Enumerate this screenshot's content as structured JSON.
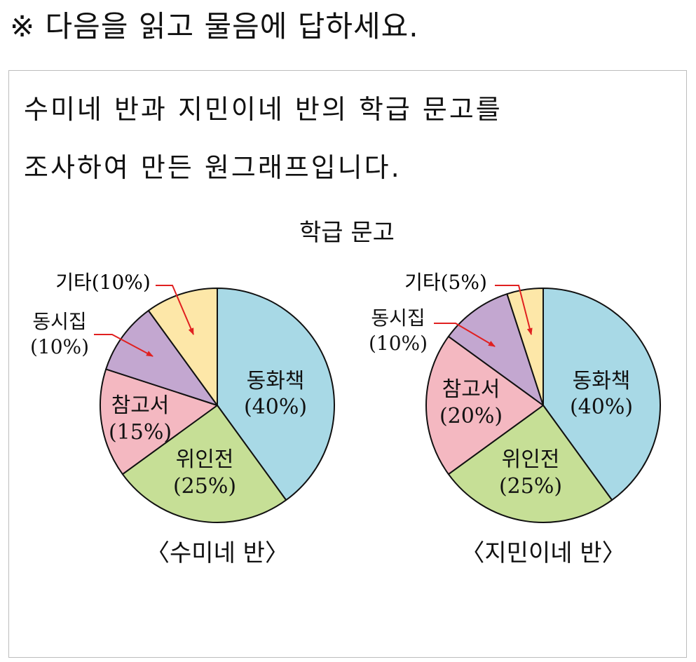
{
  "instruction": "※ 다음을 읽고 물음에 답하세요.",
  "passage": {
    "line1": "수미네 반과 지민이네 반의 학급 문고를",
    "line2": "조사하여 만든 원그래프입니다."
  },
  "chart_data": [
    {
      "type": "pie",
      "title": "학급 문고",
      "caption": "〈수미네 반〉",
      "slices": [
        {
          "label": "동화책",
          "pct_label": "(40%)",
          "value": 40,
          "color": "#a8d9e6"
        },
        {
          "label": "위인전",
          "pct_label": "(25%)",
          "value": 25,
          "color": "#c6df96"
        },
        {
          "label": "참고서",
          "pct_label": "(15%)",
          "value": 15,
          "color": "#f4b8c1"
        },
        {
          "label": "동시집",
          "pct_label": "(10%)",
          "value": 10,
          "color": "#c3a7d0"
        },
        {
          "label": "기타",
          "pct_label": "(10%)",
          "value": 10,
          "color": "#fde7a8"
        }
      ]
    },
    {
      "type": "pie",
      "title": "학급 문고",
      "caption": "〈지민이네 반〉",
      "slices": [
        {
          "label": "동화책",
          "pct_label": "(40%)",
          "value": 40,
          "color": "#a8d9e6"
        },
        {
          "label": "위인전",
          "pct_label": "(25%)",
          "value": 25,
          "color": "#c6df96"
        },
        {
          "label": "참고서",
          "pct_label": "(20%)",
          "value": 20,
          "color": "#f4b8c1"
        },
        {
          "label": "동시집",
          "pct_label": "(10%)",
          "value": 10,
          "color": "#c3a7d0"
        },
        {
          "label": "기타",
          "pct_label": "(5%)",
          "value": 5,
          "color": "#fde7a8"
        }
      ]
    }
  ],
  "colors": {
    "arrow": "#e02020",
    "outline": "#111111"
  }
}
